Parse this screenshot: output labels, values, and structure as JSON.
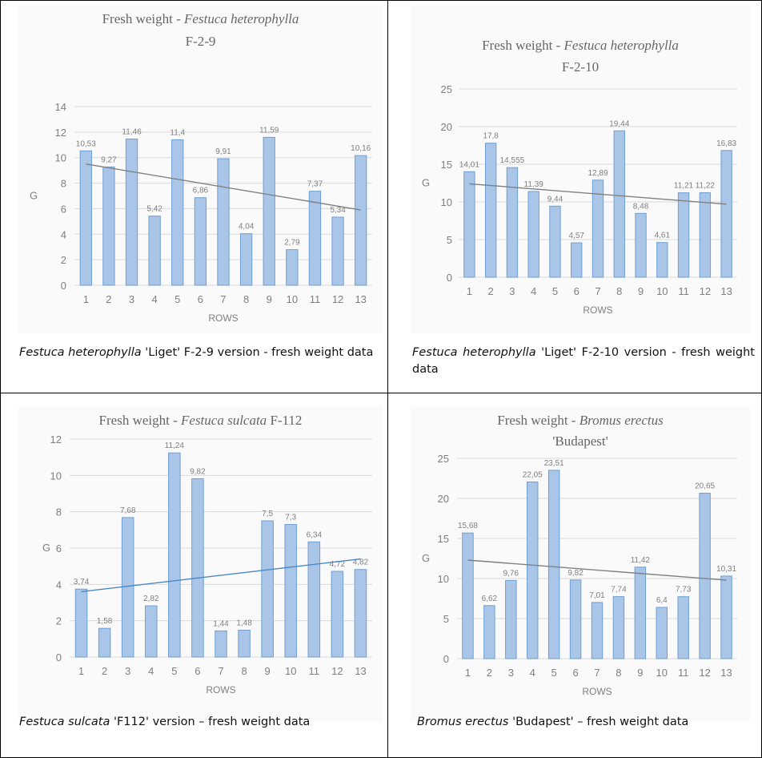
{
  "chart_data": [
    {
      "type": "bar",
      "title": [
        "Fresh weight - ",
        "Festuca heterophylla",
        "F-2-9"
      ],
      "xlabel": "ROWS",
      "ylabel": "G",
      "ylim": [
        0,
        14
      ],
      "yticks": [
        0,
        2,
        4,
        6,
        8,
        10,
        12,
        14
      ],
      "categories": [
        "1",
        "2",
        "3",
        "4",
        "5",
        "6",
        "7",
        "8",
        "9",
        "10",
        "11",
        "12",
        "13"
      ],
      "values": [
        10.53,
        9.27,
        11.46,
        5.42,
        11.4,
        6.86,
        9.91,
        4.04,
        11.59,
        2.79,
        7.37,
        5.34,
        10.16
      ],
      "labels": [
        "10,53",
        "9,27",
        "11,46",
        "5,42",
        "11,4",
        "6,86",
        "9,91",
        "4,04",
        "11,59",
        "2,79",
        "7,37",
        "5,34",
        "10,16"
      ],
      "trendline": {
        "y_start": 9.5,
        "y_end": 5.9,
        "color": "#808080"
      },
      "bar_color": "#a9c6e8",
      "grid": true
    },
    {
      "type": "bar",
      "title": [
        "Fresh weight - ",
        "Festuca heterophylla",
        "F-2-10"
      ],
      "xlabel": "ROWS",
      "ylabel": "G",
      "ylim": [
        0,
        25
      ],
      "yticks": [
        0,
        5,
        10,
        15,
        20,
        25
      ],
      "categories": [
        "1",
        "2",
        "3",
        "4",
        "5",
        "6",
        "7",
        "8",
        "9",
        "10",
        "11",
        "12",
        "13"
      ],
      "values": [
        14.01,
        17.8,
        14.555,
        11.39,
        9.44,
        4.57,
        12.89,
        19.44,
        8.48,
        4.61,
        11.21,
        11.22,
        16.83
      ],
      "labels": [
        "14,01",
        "17,8",
        "14,555",
        "11,39",
        "9,44",
        "4,57",
        "12,89",
        "19,44",
        "8,48",
        "4,61",
        "11,21",
        "11,22",
        "16,83"
      ],
      "trendline": {
        "y_start": 12.4,
        "y_end": 9.7,
        "color": "#808080"
      },
      "bar_color": "#a9c6e8",
      "grid": true
    },
    {
      "type": "bar",
      "title": [
        "Fresh weight - ",
        "Festuca sulcata",
        "F-112"
      ],
      "xlabel": "ROWS",
      "ylabel": "G",
      "ylim": [
        0,
        12
      ],
      "yticks": [
        0,
        2,
        4,
        6,
        8,
        10,
        12
      ],
      "categories": [
        "1",
        "2",
        "3",
        "4",
        "5",
        "6",
        "7",
        "8",
        "9",
        "10",
        "11",
        "12",
        "13"
      ],
      "values": [
        3.74,
        1.58,
        7.68,
        2.82,
        11.24,
        9.82,
        1.44,
        1.48,
        7.5,
        7.3,
        6.34,
        4.72,
        4.82
      ],
      "labels": [
        "3,74",
        "1,58",
        "7,68",
        "2,82",
        "11,24",
        "9,82",
        "1,44",
        "1,48",
        "7,5",
        "7,3",
        "6,34",
        "4,72",
        "4,82"
      ],
      "trendline": {
        "y_start": 3.6,
        "y_end": 5.4,
        "color": "#4a86c6"
      },
      "bar_color": "#a9c6e8",
      "grid": true
    },
    {
      "type": "bar",
      "title": [
        "Fresh weight - ",
        "Bromus erectus",
        "'Budapest'"
      ],
      "xlabel": "ROWS",
      "ylabel": "G",
      "ylim": [
        0,
        25
      ],
      "yticks": [
        0,
        5,
        10,
        15,
        20,
        25
      ],
      "categories": [
        "1",
        "2",
        "3",
        "4",
        "5",
        "6",
        "7",
        "8",
        "9",
        "10",
        "11",
        "12",
        "13"
      ],
      "values": [
        15.68,
        6.62,
        9.76,
        22.05,
        23.51,
        9.82,
        7.01,
        7.74,
        11.42,
        6.4,
        7.73,
        20.65,
        10.31
      ],
      "labels": [
        "15,68",
        "6,62",
        "9,76",
        "22,05",
        "23,51",
        "9,82",
        "7,01",
        "7,74",
        "11,42",
        "6,4",
        "7,73",
        "20,65",
        "10,31"
      ],
      "trendline": {
        "y_start": 12.3,
        "y_end": 9.8,
        "color": "#808080"
      },
      "bar_color": "#a9c6e8",
      "grid": true
    }
  ],
  "captions": [
    {
      "italic": "Festuca heterophylla",
      "rest": " 'Liget' F-2-9 version - fresh weight data"
    },
    {
      "italic": "Festuca heterophylla",
      "rest": " 'Liget' F-2-10 version - fresh weight data"
    },
    {
      "italic": "Festuca sulcata",
      "rest": " 'F112' version – fresh weight data"
    },
    {
      "italic": "Bromus erectus",
      "rest": " 'Budapest' – fresh weight data"
    }
  ]
}
